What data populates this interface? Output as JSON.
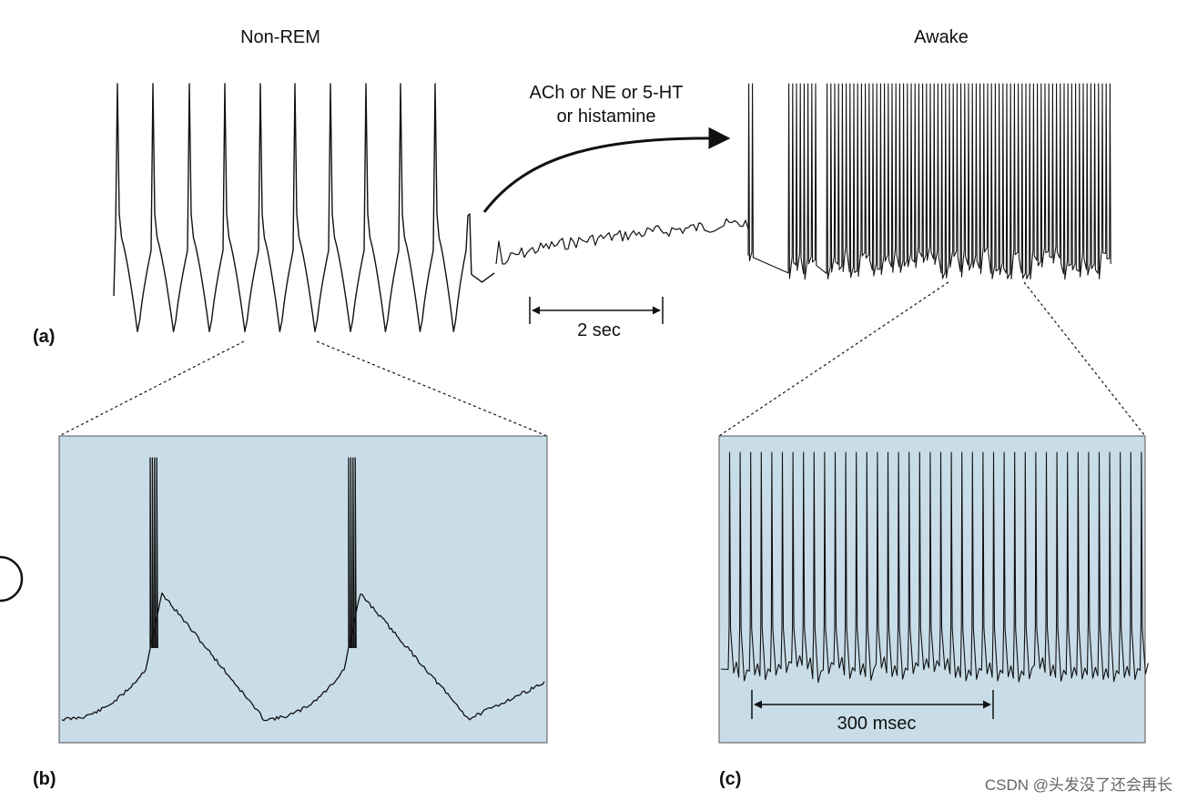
{
  "titles": {
    "non_rem": "Non-REM",
    "awake": "Awake"
  },
  "transition": {
    "line1": "ACh or NE or 5-HT",
    "line2": "or histamine"
  },
  "scale_bars": {
    "top": "2 sec",
    "panel_c": "300 msec"
  },
  "panel_labels": {
    "a": "(a)",
    "b": "(b)",
    "c": "(c)"
  },
  "watermark": "CSDN @头发没了还会再长",
  "colors": {
    "panel_fill": "#c8dde8",
    "trace": "#111111"
  }
}
